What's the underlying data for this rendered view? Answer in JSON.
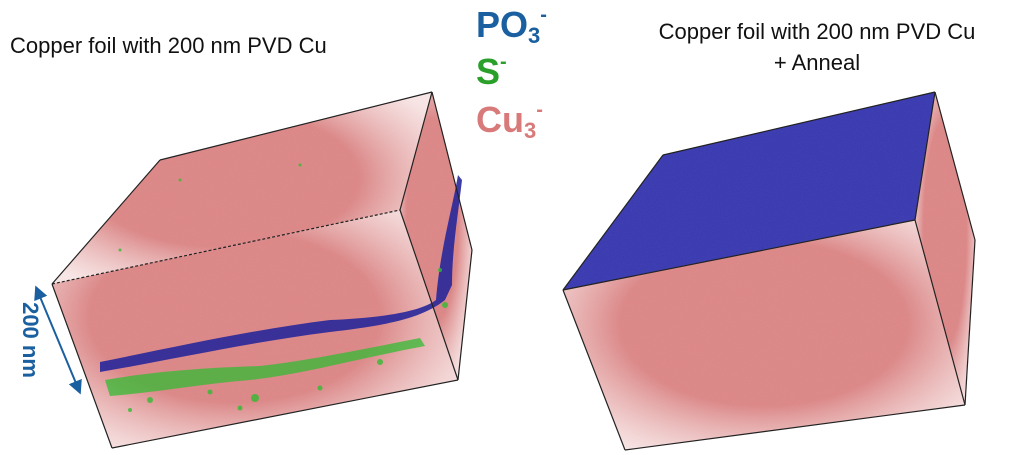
{
  "left_panel": {
    "title": "Copper foil with 200 nm PVD Cu"
  },
  "right_panel": {
    "title_line1": "Copper foil with 200 nm PVD Cu",
    "title_line2": "+ Anneal"
  },
  "legend": [
    {
      "base": "PO",
      "sub": "3",
      "sup": "-",
      "color": "#1a5fa0"
    },
    {
      "base": "S",
      "sub": "",
      "sup": "-",
      "color": "#2aa02a"
    },
    {
      "base": "Cu",
      "sub": "3",
      "sup": "-",
      "color": "#d97a7a"
    }
  ],
  "scale_bar": {
    "label": "200 nm",
    "color": "#1a5fa0"
  },
  "colors": {
    "copper": "#d98080",
    "phosphate": "#2a2a9a",
    "sulfur": "#33bb33",
    "edge": "#222222"
  }
}
